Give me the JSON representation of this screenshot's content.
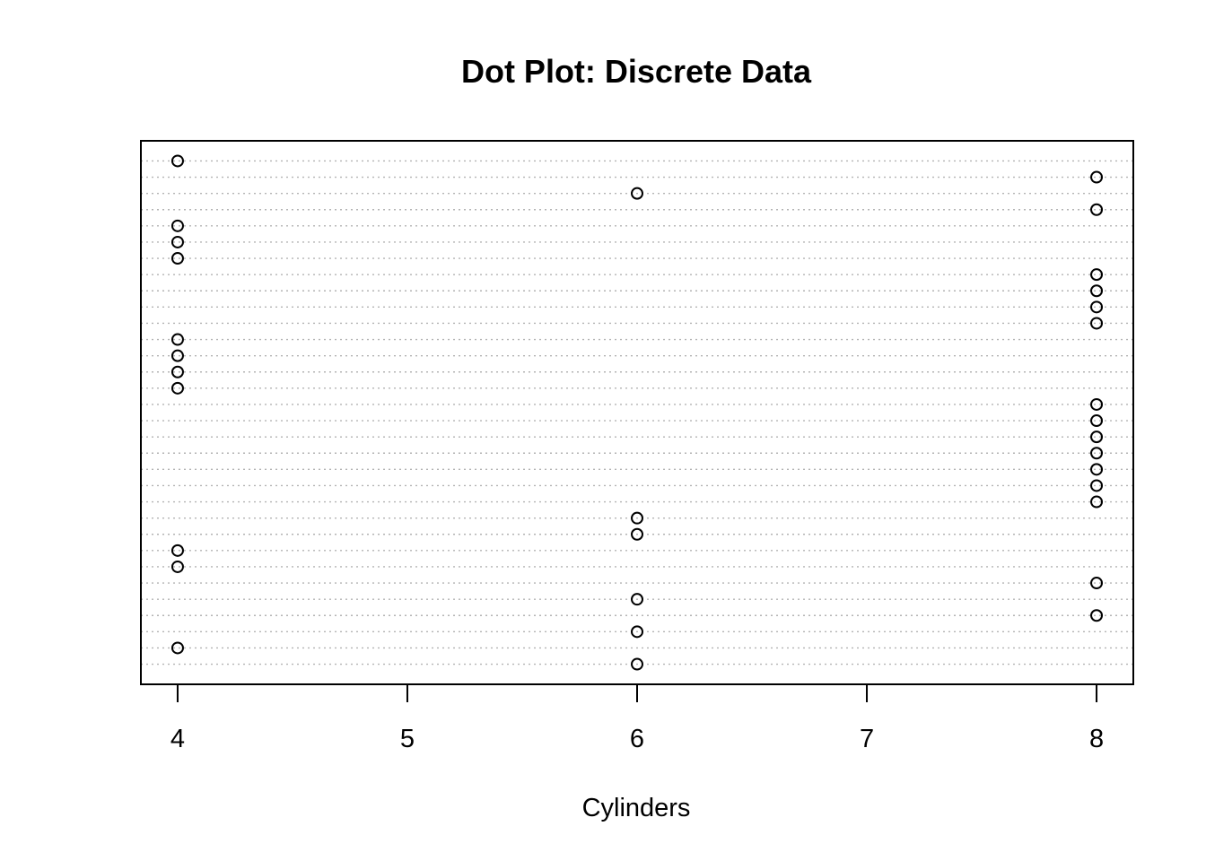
{
  "chart_data": {
    "type": "scatter",
    "title": "Dot Plot: Discrete Data",
    "xlabel": "Cylinders",
    "ylabel": "",
    "xlim": [
      3.84,
      8.16
    ],
    "xticks": [
      4,
      5,
      6,
      7,
      8
    ],
    "grid": true,
    "values": [
      6,
      4,
      6,
      8,
      6,
      8,
      4,
      4,
      6,
      6,
      8,
      8,
      8,
      8,
      8,
      8,
      8,
      4,
      4,
      4,
      4,
      8,
      8,
      8,
      8,
      4,
      4,
      4,
      8,
      6,
      8,
      4
    ]
  }
}
